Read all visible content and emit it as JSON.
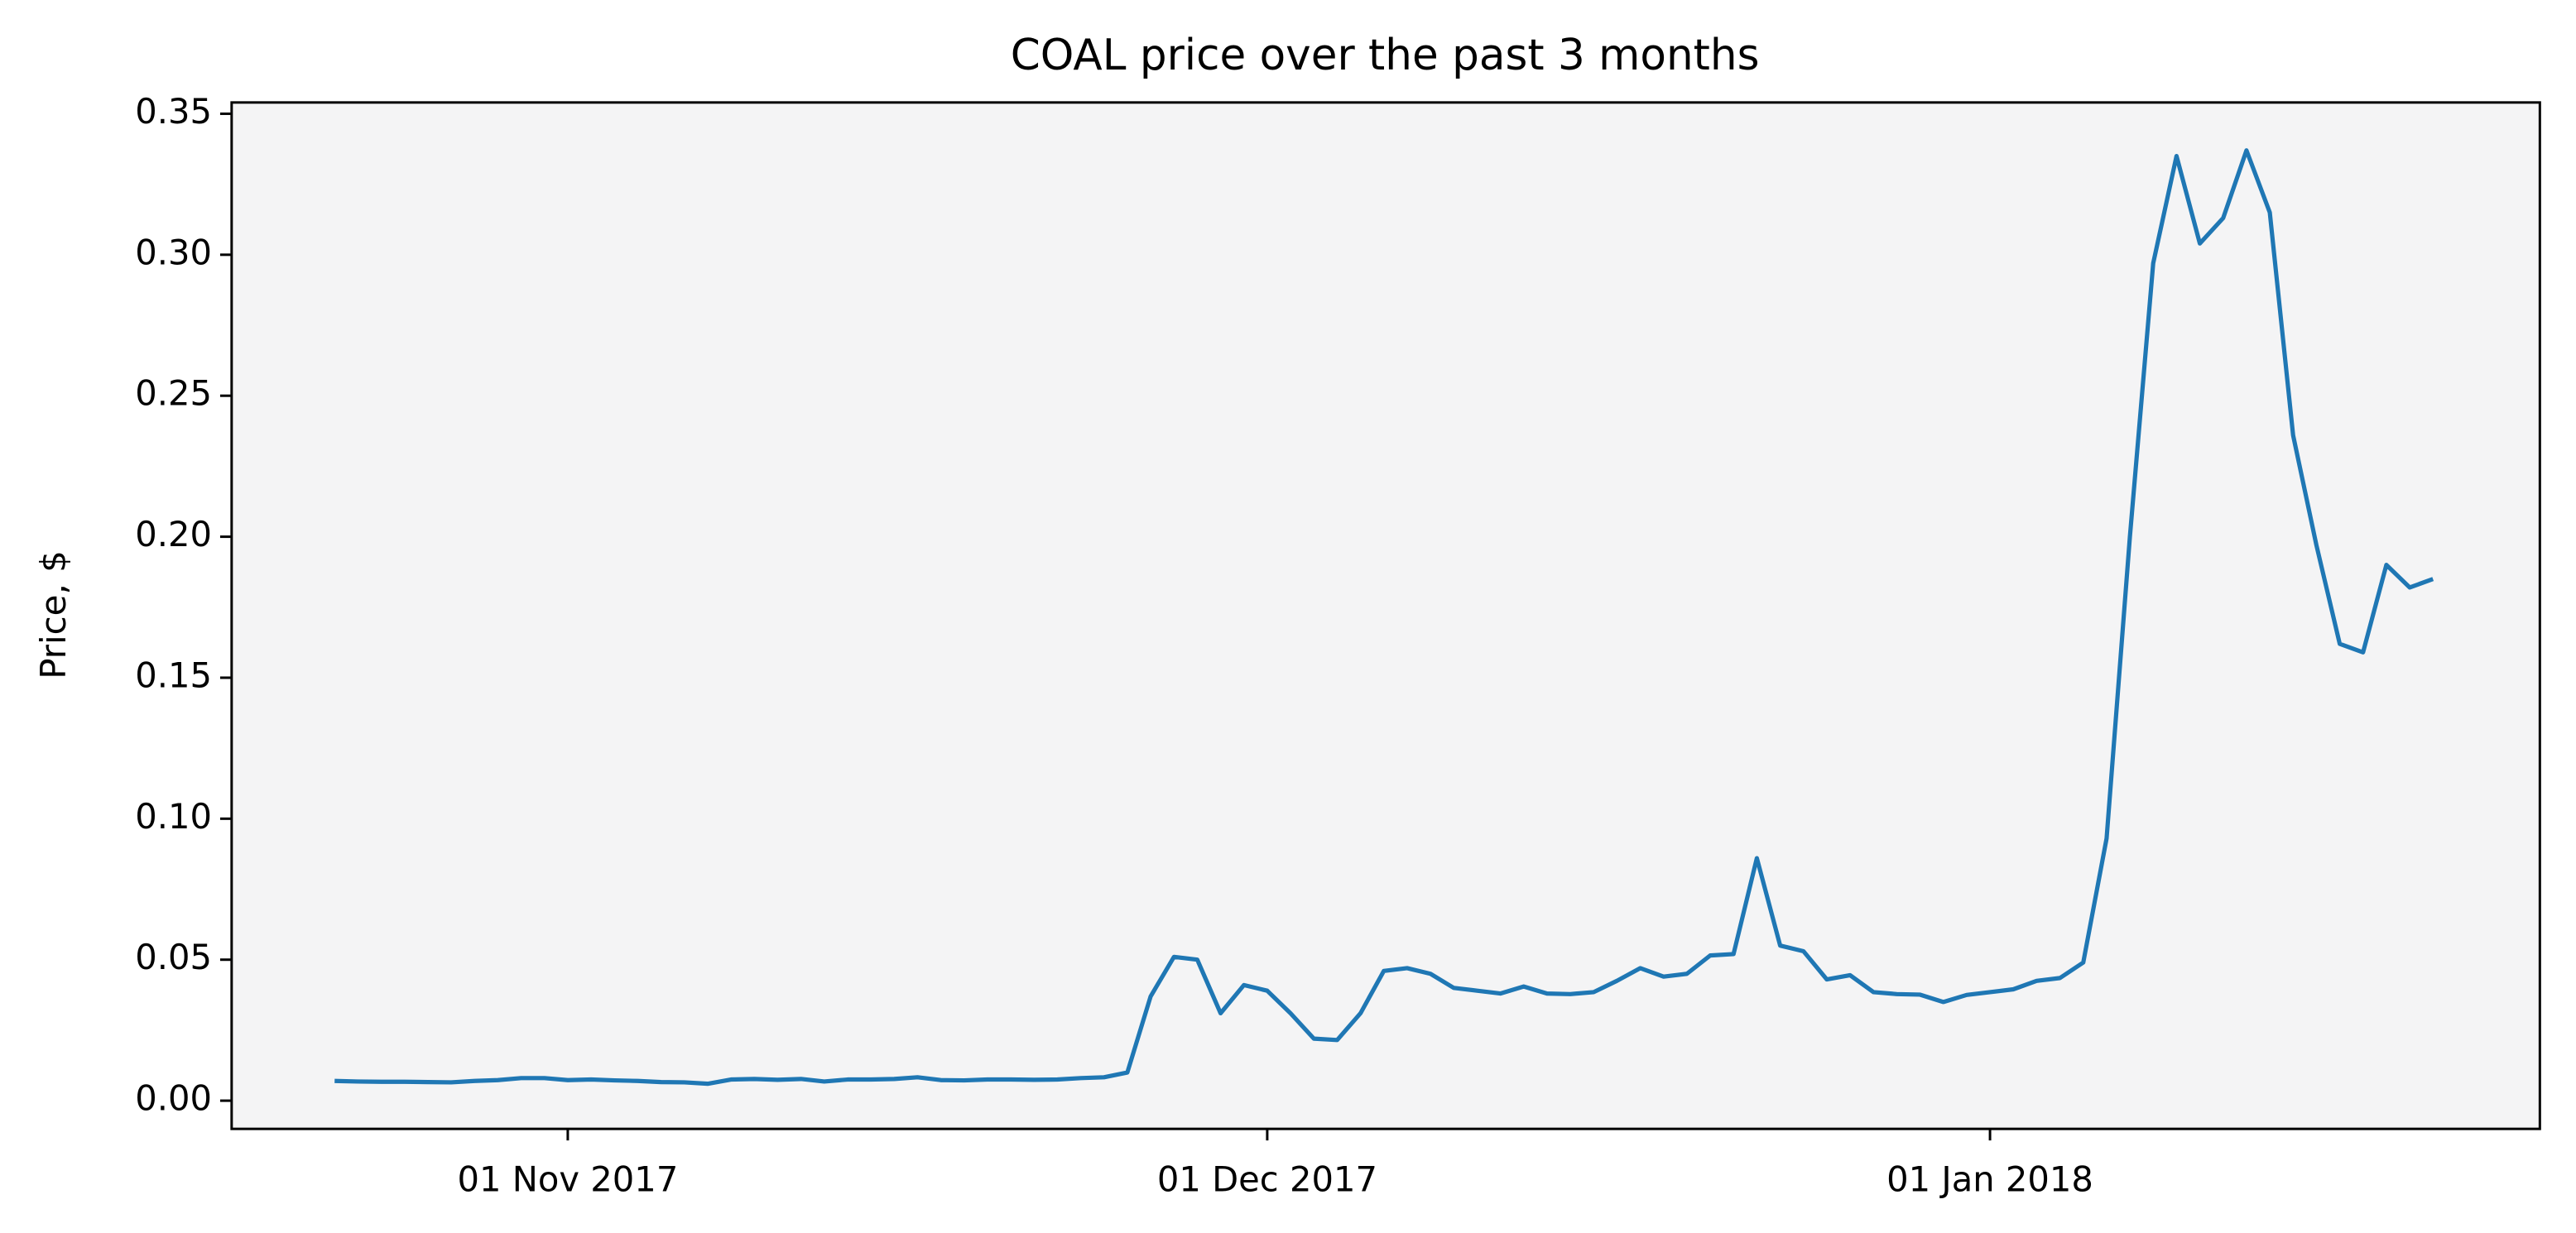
{
  "chart_data": {
    "type": "line",
    "title": "COAL price over the past 3 months",
    "ylabel": "Price, $",
    "color": "#1f77b4",
    "grid": false,
    "x": [
      "2017-10-22",
      "2017-10-23",
      "2017-10-24",
      "2017-10-25",
      "2017-10-26",
      "2017-10-27",
      "2017-10-28",
      "2017-10-29",
      "2017-10-30",
      "2017-10-31",
      "2017-11-01",
      "2017-11-02",
      "2017-11-03",
      "2017-11-04",
      "2017-11-05",
      "2017-11-06",
      "2017-11-07",
      "2017-11-08",
      "2017-11-09",
      "2017-11-10",
      "2017-11-11",
      "2017-11-12",
      "2017-11-13",
      "2017-11-14",
      "2017-11-15",
      "2017-11-16",
      "2017-11-17",
      "2017-11-18",
      "2017-11-19",
      "2017-11-20",
      "2017-11-21",
      "2017-11-22",
      "2017-11-23",
      "2017-11-24",
      "2017-11-25",
      "2017-11-26",
      "2017-11-27",
      "2017-11-28",
      "2017-11-29",
      "2017-11-30",
      "2017-12-01",
      "2017-12-02",
      "2017-12-03",
      "2017-12-04",
      "2017-12-05",
      "2017-12-06",
      "2017-12-07",
      "2017-12-08",
      "2017-12-09",
      "2017-12-10",
      "2017-12-11",
      "2017-12-12",
      "2017-12-13",
      "2017-12-14",
      "2017-12-15",
      "2017-12-16",
      "2017-12-17",
      "2017-12-18",
      "2017-12-19",
      "2017-12-20",
      "2017-12-21",
      "2017-12-22",
      "2017-12-23",
      "2017-12-24",
      "2017-12-25",
      "2017-12-26",
      "2017-12-27",
      "2017-12-28",
      "2017-12-29",
      "2017-12-30",
      "2017-12-31",
      "2018-01-01",
      "2018-01-02",
      "2018-01-03",
      "2018-01-04",
      "2018-01-05",
      "2018-01-06",
      "2018-01-07",
      "2018-01-08",
      "2018-01-09",
      "2018-01-10",
      "2018-01-11",
      "2018-01-12",
      "2018-01-13",
      "2018-01-14",
      "2018-01-15",
      "2018-01-16",
      "2018-01-17",
      "2018-01-18",
      "2018-01-19",
      "2018-01-20"
    ],
    "values": [
      0.007,
      0.0068,
      0.0067,
      0.0067,
      0.0066,
      0.0065,
      0.007,
      0.0073,
      0.008,
      0.008,
      0.0073,
      0.0075,
      0.0072,
      0.007,
      0.0066,
      0.0065,
      0.006,
      0.0075,
      0.0077,
      0.0074,
      0.0077,
      0.0068,
      0.0075,
      0.0075,
      0.0077,
      0.0083,
      0.0073,
      0.0072,
      0.0075,
      0.0075,
      0.0074,
      0.0075,
      0.008,
      0.0083,
      0.01,
      0.037,
      0.051,
      0.05,
      0.031,
      0.041,
      0.039,
      0.031,
      0.022,
      0.0215,
      0.031,
      0.046,
      0.047,
      0.045,
      0.04,
      0.039,
      0.038,
      0.0405,
      0.038,
      0.0378,
      0.0385,
      0.0425,
      0.047,
      0.044,
      0.045,
      0.0515,
      0.052,
      0.086,
      0.055,
      0.053,
      0.043,
      0.0445,
      0.0385,
      0.0378,
      0.0376,
      0.035,
      0.0375,
      0.0385,
      0.0395,
      0.0425,
      0.0435,
      0.049,
      0.093,
      0.2,
      0.297,
      0.335,
      0.304,
      0.313,
      0.337,
      0.315,
      0.236,
      0.197,
      0.162,
      0.159,
      0.19,
      0.182,
      0.185
    ],
    "xlim": [
      "2017-10-17T14:00",
      "2018-01-24T14:00"
    ],
    "xticks": [
      {
        "value": "2017-11-01",
        "label": "01 Nov 2017"
      },
      {
        "value": "2017-12-01",
        "label": "01 Dec 2017"
      },
      {
        "value": "2018-01-01",
        "label": "01 Jan 2018"
      }
    ],
    "ylim": [
      -0.01,
      0.354
    ],
    "yticks": [
      {
        "value": 0,
        "label": "0.00"
      },
      0.05,
      {
        "value": 0.1,
        "label": "0.10"
      },
      0.15,
      {
        "value": 0.2,
        "label": "0.20"
      },
      0.25,
      {
        "value": 0.3,
        "label": "0.30"
      },
      0.35
    ]
  }
}
